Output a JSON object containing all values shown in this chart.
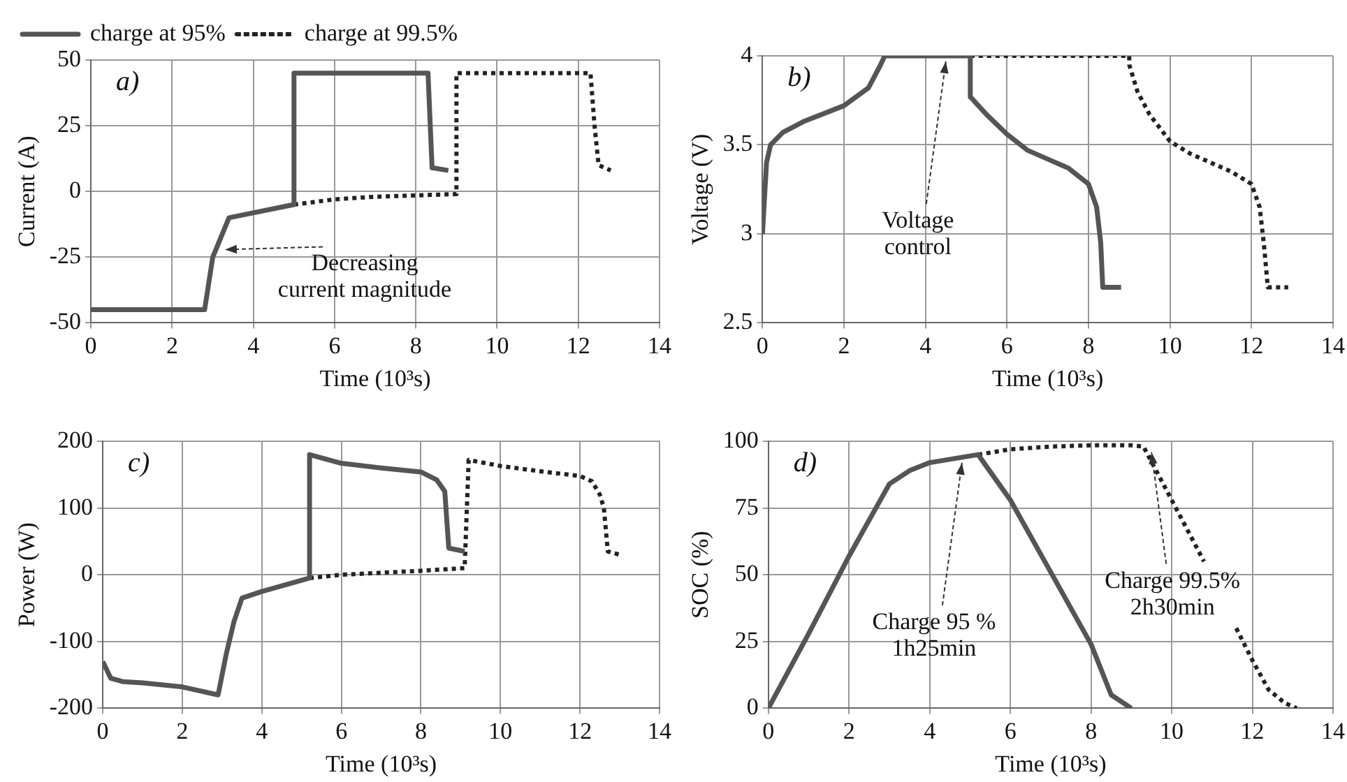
{
  "chart_data": [
    {
      "type": "line",
      "xlabel": "Time (10³s)",
      "ylabel": "Current (A)",
      "xlim": [
        0,
        14
      ],
      "xticks": [
        0,
        2,
        4,
        6,
        8,
        10,
        12,
        14
      ],
      "ylim": [
        -50,
        50
      ],
      "yticks": [
        -50,
        -25,
        0,
        25,
        50
      ],
      "grid": true,
      "legend": "top left",
      "marker": "none",
      "annotations": [
        "a)",
        {
          "text": "Decreasing\ncurrent magnitude",
          "x": 3.3,
          "y": -20
        }
      ],
      "series": [
        {
          "name": "charge at 95%",
          "color": "#555555",
          "line_style": "solid",
          "x": [
            0,
            2.8,
            3.0,
            3.4,
            5.0,
            5.0,
            8.3,
            8.4,
            8.8
          ],
          "values": [
            -45,
            -45,
            -25,
            -10,
            -5,
            45,
            45,
            9,
            8
          ]
        },
        {
          "name": "charge at 99.5%",
          "color": "#222222",
          "line_style": "dotted",
          "x": [
            5.0,
            6,
            7,
            8,
            9,
            9.0,
            12.3,
            12.4,
            12.5,
            12.8
          ],
          "values": [
            -5,
            -3,
            -2,
            -1.5,
            -1,
            45,
            45,
            25,
            10,
            8
          ]
        }
      ]
    },
    {
      "type": "line",
      "xlabel": "Time (10³s)",
      "ylabel": "Voltage (V)",
      "xlim": [
        0,
        14
      ],
      "xticks": [
        0,
        2,
        4,
        6,
        8,
        10,
        12,
        14
      ],
      "ylim": [
        2.5,
        4
      ],
      "yticks": [
        2.5,
        3,
        3.5,
        4
      ],
      "grid": true,
      "marker": "none",
      "annotations": [
        "b)",
        {
          "text": "Voltage\ncontrol",
          "x": 4.5,
          "y": 4.0
        }
      ],
      "series": [
        {
          "color": "#555555",
          "line_style": "solid",
          "x": [
            0,
            0.1,
            0.2,
            0.5,
            1,
            2,
            2.6,
            2.9,
            3.0,
            5.1,
            5.1,
            5.5,
            6,
            6.5,
            7,
            7.5,
            8,
            8.2,
            8.3,
            8.35,
            8.8
          ],
          "values": [
            3.0,
            3.4,
            3.5,
            3.57,
            3.63,
            3.72,
            3.82,
            3.95,
            4.0,
            4.0,
            3.77,
            3.67,
            3.56,
            3.47,
            3.42,
            3.37,
            3.28,
            3.15,
            2.95,
            2.7,
            2.7
          ]
        },
        {
          "color": "#222222",
          "line_style": "dotted",
          "x": [
            5.1,
            9,
            9.0,
            9.2,
            9.5,
            10,
            10.5,
            11,
            11.5,
            12,
            12.2,
            12.3,
            12.4,
            12.9
          ],
          "values": [
            4.0,
            4.0,
            3.95,
            3.8,
            3.67,
            3.52,
            3.45,
            3.4,
            3.35,
            3.28,
            3.15,
            2.95,
            2.7,
            2.7
          ]
        }
      ]
    },
    {
      "type": "line",
      "xlabel": "Time (10³s)",
      "ylabel": "Power (W)",
      "xlim": [
        0,
        14
      ],
      "xticks": [
        0,
        2,
        4,
        6,
        8,
        10,
        12,
        14
      ],
      "ylim": [
        -200,
        200
      ],
      "yticks": [
        -200,
        -100,
        0,
        100,
        200
      ],
      "grid": true,
      "marker": "none",
      "annotations": [
        "c)"
      ],
      "series": [
        {
          "color": "#555555",
          "line_style": "solid",
          "x": [
            0,
            0.2,
            0.5,
            1,
            2,
            2.9,
            3.1,
            3.3,
            3.5,
            4,
            5.2,
            5.2,
            6,
            7,
            8,
            8.4,
            8.6,
            8.7,
            9.1
          ],
          "values": [
            -130,
            -155,
            -160,
            -162,
            -168,
            -180,
            -120,
            -70,
            -35,
            -25,
            -5,
            180,
            167,
            160,
            154,
            142,
            125,
            40,
            35
          ]
        },
        {
          "color": "#222222",
          "line_style": "dotted",
          "x": [
            5.2,
            6,
            7,
            8,
            9.1,
            9.2,
            10,
            11,
            12,
            12.3,
            12.5,
            12.6,
            12.7,
            13
          ],
          "values": [
            -5,
            0,
            3,
            6,
            10,
            172,
            163,
            155,
            148,
            140,
            120,
            100,
            35,
            30
          ]
        }
      ]
    },
    {
      "type": "line",
      "xlabel": "Time (10³s)",
      "ylabel": "SOC (%)",
      "xlim": [
        0,
        14
      ],
      "xticks": [
        0,
        2,
        4,
        6,
        8,
        10,
        12,
        14
      ],
      "ylim": [
        0,
        100
      ],
      "yticks": [
        0,
        25,
        50,
        75,
        100
      ],
      "grid": true,
      "marker": "none",
      "annotations": [
        "d)",
        {
          "text": "Charge 95 %\n1h25min",
          "x": 4.8,
          "y": 94
        },
        {
          "text": "Charge 99.5%\n2h30min",
          "x": 9.5,
          "y": 98
        }
      ],
      "series": [
        {
          "color": "#555555",
          "line_style": "solid",
          "x": [
            0,
            1,
            2,
            3,
            3.5,
            4,
            5.2,
            6,
            7,
            8,
            8.5,
            9
          ],
          "values": [
            0,
            28,
            57,
            84,
            89,
            92,
            95,
            78,
            51,
            24,
            5,
            0
          ]
        },
        {
          "color": "#222222",
          "line_style": "dotted",
          "x": [
            5.2,
            6,
            7,
            8,
            9,
            9.3,
            10,
            10.8,
            11.2,
            11.6,
            12,
            12.4,
            12.8,
            13.1
          ],
          "values": [
            95,
            97,
            98,
            98.5,
            98.5,
            98,
            78,
            55,
            null,
            30,
            18,
            7,
            2,
            0
          ]
        }
      ]
    }
  ]
}
